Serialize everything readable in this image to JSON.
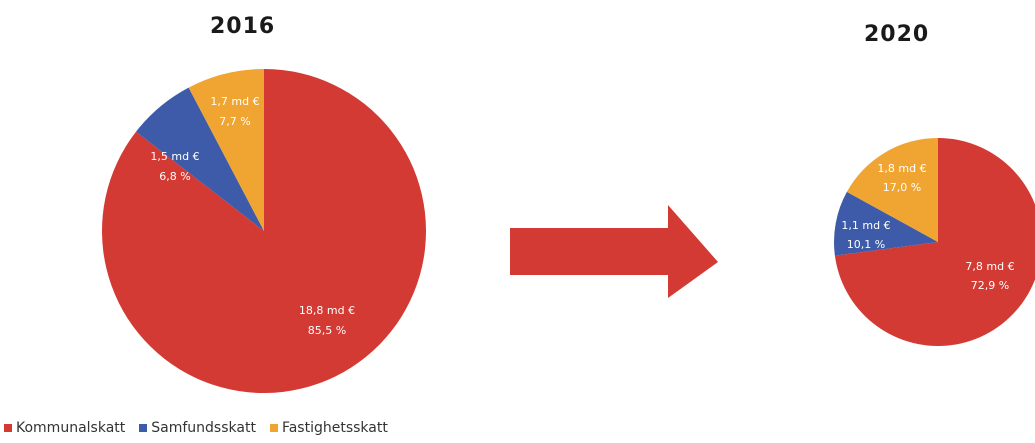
{
  "colors": {
    "kommunalskatt": "#d33a33",
    "samfundsskatt": "#3d5ba9",
    "fastighetsskatt": "#f0a431",
    "arrow": "#d33a33"
  },
  "legend": {
    "items": [
      {
        "label": "Kommunalskatt",
        "color": "#d33a33"
      },
      {
        "label": "Samfundsskatt",
        "color": "#3d5ba9"
      },
      {
        "label": "Fastighetsskatt",
        "color": "#f0a431"
      }
    ]
  },
  "chart_data": [
    {
      "type": "pie",
      "title": "2016",
      "slices": [
        {
          "category": "Kommunalskatt",
          "value": 85.5,
          "label_line1": "18,8 md €",
          "label_line2": "85,5 %"
        },
        {
          "category": "Samfundsskatt",
          "value": 6.8,
          "label_line1": "1,5 md €",
          "label_line2": "6,8 %"
        },
        {
          "category": "Fastighetsskatt",
          "value": 7.7,
          "label_line1": "1,7 md €",
          "label_line2": "7,7 %"
        }
      ],
      "legend_placement": "bottom-left"
    },
    {
      "type": "pie",
      "title": "2020",
      "slices": [
        {
          "category": "Kommunalskatt",
          "value": 72.9,
          "label_line1": "7,8 md €",
          "label_line2": "72,9 %"
        },
        {
          "category": "Samfundsskatt",
          "value": 10.1,
          "label_line1": "1,1 md €",
          "label_line2": "10,1 %"
        },
        {
          "category": "Fastighetsskatt",
          "value": 17.0,
          "label_line1": "1,8 md €",
          "label_line2": "17,0 %"
        }
      ]
    }
  ]
}
